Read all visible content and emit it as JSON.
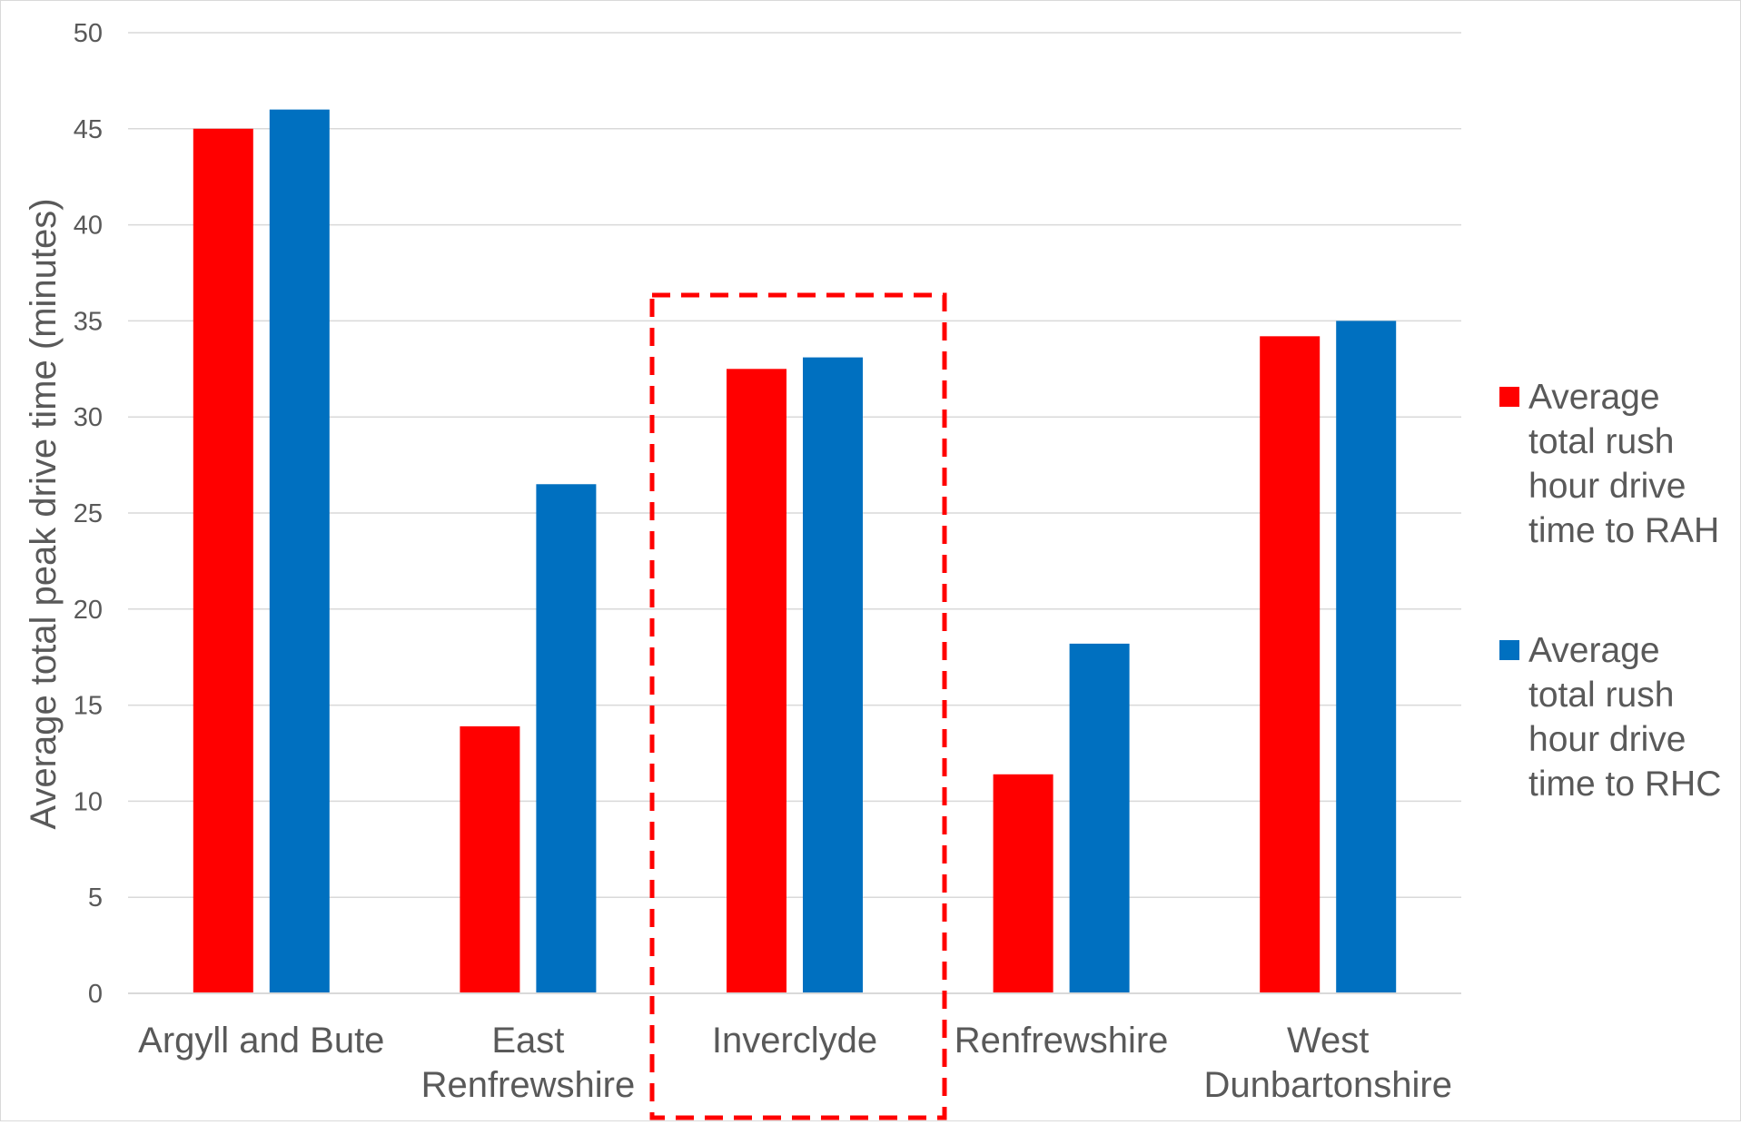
{
  "chart_data": {
    "type": "bar",
    "ylabel": "Average total peak drive time (minutes)",
    "xlabel": "",
    "ylim": [
      0,
      50
    ],
    "yticks": [
      0,
      5,
      10,
      15,
      20,
      25,
      30,
      35,
      40,
      45,
      50
    ],
    "grid": true,
    "legend_position": "right",
    "categories": [
      [
        "Argyll and Bute"
      ],
      [
        "East",
        "Renfrewshire"
      ],
      [
        "Inverclyde"
      ],
      [
        "Renfrewshire"
      ],
      [
        "West",
        "Dunbartonshire"
      ]
    ],
    "series": [
      {
        "name": "Average total rush hour drive time to RAH",
        "legend_lines": [
          "Average",
          "total rush",
          "hour drive",
          "time to RAH"
        ],
        "color": "#ff0000",
        "values": [
          45,
          13.9,
          32.5,
          11.4,
          34.2
        ]
      },
      {
        "name": "Average total rush hour drive time to RHC",
        "legend_lines": [
          "Average",
          "total rush",
          "hour drive",
          "time to RHC"
        ],
        "color": "#0070c0",
        "values": [
          46,
          26.5,
          33.1,
          18.2,
          35
        ]
      }
    ],
    "highlight": {
      "category_index": 2,
      "style": "dashed-box",
      "color": "#ff0000"
    }
  }
}
